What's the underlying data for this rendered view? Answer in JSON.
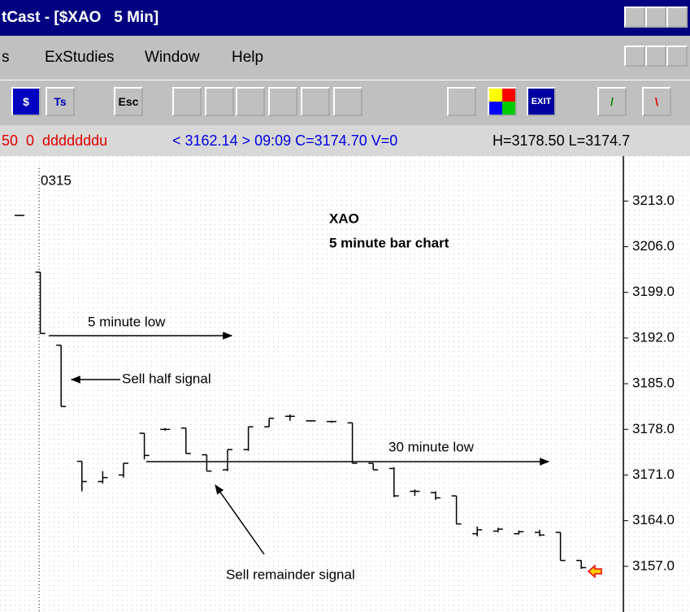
{
  "window": {
    "title": "tCast - [$XAO   5 Min]",
    "menu": [
      "s",
      "ExStudies",
      "Window",
      "Help"
    ],
    "toolbar": [
      "Ts",
      "Esc",
      "EXIT"
    ],
    "status": {
      "red": "50  0  dddddddu",
      "blue": "< 3162.14 > 09:09 C=3174.70 V=0",
      "black": "H=3178.50 L=3174.7"
    }
  },
  "chart_data": {
    "type": "ohlc",
    "title": "XAO",
    "subtitle": "5 minute bar chart",
    "date_label": "0315",
    "annotations": [
      "5 minute low",
      "Sell half signal",
      "30 minute low",
      "Sell remainder signal"
    ],
    "categories": [
      null,
      null,
      null,
      null,
      null,
      null,
      null,
      null,
      null,
      null,
      null,
      null,
      null,
      null,
      null,
      null,
      null,
      null,
      null,
      null,
      null,
      null,
      null,
      null,
      null,
      null,
      null,
      null
    ],
    "high": [
      3210.8,
      3202.1,
      3190.9,
      3173.1,
      3171.6,
      3172.8,
      3177.4,
      3178.2,
      3178.2,
      3174.1,
      3174.9,
      3178.4,
      3179.7,
      3180.3,
      3179.4,
      3179.3,
      3179.0,
      3172.8,
      3172.2,
      3168.8,
      3168.5,
      3167.8,
      3163.1,
      3162.9,
      3162.5,
      3162.6,
      3162.2,
      3157.9
    ],
    "low": [
      3210.8,
      3192.7,
      3181.5,
      3168.5,
      3169.7,
      3170.6,
      3173.4,
      3177.8,
      3174.3,
      3171.6,
      3171.6,
      3174.7,
      3178.4,
      3179.3,
      3179.2,
      3179.0,
      3172.8,
      3171.8,
      3167.6,
      3167.8,
      3167.2,
      3163.5,
      3161.6,
      3162.2,
      3161.9,
      3161.6,
      3157.9,
      3156.6
    ],
    "open": [
      3210.8,
      3202.1,
      3190.9,
      3173.1,
      3170.0,
      3171.0,
      3177.4,
      3178.0,
      3178.2,
      3174.1,
      3171.8,
      3174.9,
      3178.4,
      3180.0,
      3179.3,
      3179.2,
      3179.0,
      3172.8,
      3172.0,
      3168.5,
      3168.3,
      3167.8,
      3162.0,
      3162.4,
      3162.0,
      3162.2,
      3162.2,
      3157.9
    ],
    "close": [
      3210.8,
      3192.7,
      3181.5,
      3170.0,
      3170.6,
      3172.8,
      3174.0,
      3178.0,
      3174.3,
      3171.6,
      3174.9,
      3178.4,
      3179.7,
      3180.0,
      3179.3,
      3179.2,
      3172.8,
      3171.8,
      3167.8,
      3168.5,
      3167.5,
      3163.5,
      3162.6,
      3162.7,
      3162.3,
      3161.8,
      3157.9,
      3156.8
    ],
    "color": "#000000",
    "ylim": [
      3150,
      3219.9
    ],
    "yticks": [
      {
        "value": 3157,
        "label": "3157.0"
      },
      {
        "value": 3164,
        "label": "3164.0"
      },
      {
        "value": 3171,
        "label": "3171.0"
      },
      {
        "value": 3178,
        "label": "3178.0"
      },
      {
        "value": 3185,
        "label": "3185.0"
      },
      {
        "value": 3192,
        "label": "3192.0"
      },
      {
        "value": 3199,
        "label": "3199.0"
      },
      {
        "value": 3206,
        "label": "3206.0"
      },
      {
        "value": 3213,
        "label": "3213.0"
      }
    ]
  }
}
